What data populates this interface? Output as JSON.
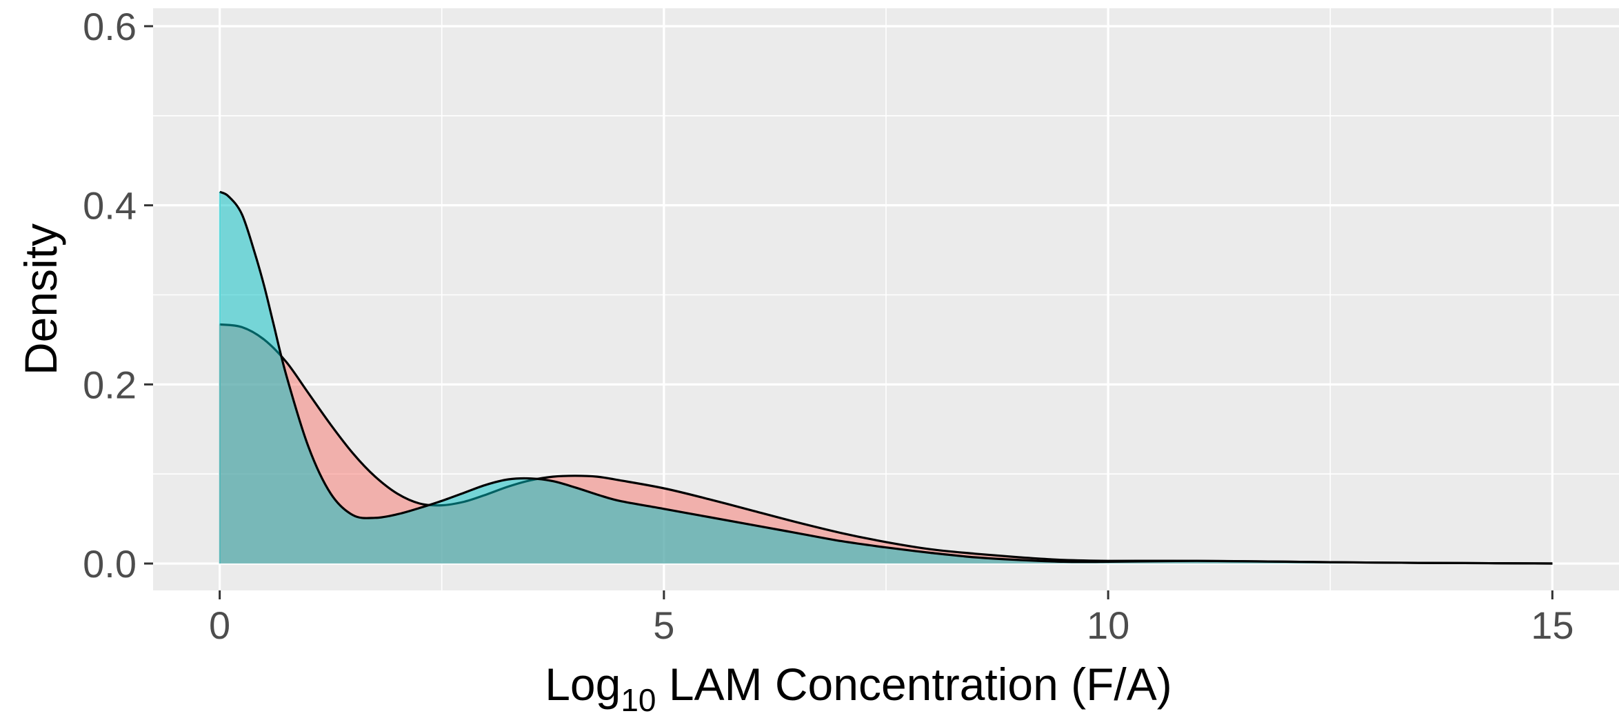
{
  "chart_data": {
    "type": "area",
    "xlabel": {
      "prefix": "Log",
      "subscript": "10",
      "suffix": " LAM Concentration (F/A)"
    },
    "ylabel": "Density",
    "xlim": [
      -0.75,
      15.75
    ],
    "ylim": [
      -0.03,
      0.62
    ],
    "x_ticks": [
      0,
      5,
      10,
      15
    ],
    "x_tick_labels": [
      "0",
      "5",
      "10",
      "15"
    ],
    "y_ticks": [
      0.0,
      0.2,
      0.4,
      0.6
    ],
    "y_tick_labels": [
      "0.0",
      "0.2",
      "0.4",
      "0.6"
    ],
    "grid": true,
    "legend": "none",
    "series": [
      {
        "fill": "#F8766D",
        "points": [
          [
            0,
            0.267
          ],
          [
            0.25,
            0.264
          ],
          [
            0.5,
            0.25
          ],
          [
            0.75,
            0.225
          ],
          [
            1,
            0.19
          ],
          [
            1.25,
            0.155
          ],
          [
            1.5,
            0.123
          ],
          [
            1.75,
            0.097
          ],
          [
            2,
            0.078
          ],
          [
            2.25,
            0.067
          ],
          [
            2.5,
            0.065
          ],
          [
            2.75,
            0.069
          ],
          [
            3,
            0.077
          ],
          [
            3.25,
            0.086
          ],
          [
            3.5,
            0.093
          ],
          [
            3.75,
            0.097
          ],
          [
            4,
            0.098
          ],
          [
            4.25,
            0.097
          ],
          [
            4.5,
            0.093
          ],
          [
            5,
            0.084
          ],
          [
            5.5,
            0.072
          ],
          [
            6,
            0.059
          ],
          [
            6.5,
            0.046
          ],
          [
            7,
            0.034
          ],
          [
            7.5,
            0.024
          ],
          [
            8,
            0.016
          ],
          [
            8.5,
            0.011
          ],
          [
            9,
            0.007
          ],
          [
            9.5,
            0.004
          ],
          [
            10,
            0.003
          ],
          [
            11,
            0.003
          ],
          [
            12,
            0.002
          ],
          [
            13,
            0.001
          ],
          [
            14,
            0.0005
          ],
          [
            15,
            0.0
          ]
        ]
      },
      {
        "fill": "#00BFC4",
        "points": [
          [
            0,
            0.415
          ],
          [
            0.1,
            0.41
          ],
          [
            0.25,
            0.39
          ],
          [
            0.4,
            0.345
          ],
          [
            0.5,
            0.31
          ],
          [
            0.6,
            0.27
          ],
          [
            0.75,
            0.21
          ],
          [
            1,
            0.13
          ],
          [
            1.25,
            0.078
          ],
          [
            1.5,
            0.054
          ],
          [
            1.75,
            0.051
          ],
          [
            2,
            0.055
          ],
          [
            2.25,
            0.062
          ],
          [
            2.5,
            0.07
          ],
          [
            2.75,
            0.079
          ],
          [
            3,
            0.088
          ],
          [
            3.25,
            0.094
          ],
          [
            3.5,
            0.095
          ],
          [
            3.75,
            0.092
          ],
          [
            4,
            0.085
          ],
          [
            4.25,
            0.077
          ],
          [
            4.5,
            0.07
          ],
          [
            5,
            0.061
          ],
          [
            5.5,
            0.052
          ],
          [
            6,
            0.043
          ],
          [
            6.5,
            0.034
          ],
          [
            7,
            0.025
          ],
          [
            7.5,
            0.018
          ],
          [
            8,
            0.012
          ],
          [
            8.5,
            0.007
          ],
          [
            9,
            0.004
          ],
          [
            9.5,
            0.002
          ],
          [
            10,
            0.002
          ],
          [
            11,
            0.003
          ],
          [
            12,
            0.002
          ],
          [
            13,
            0.001
          ],
          [
            14,
            0.0005
          ],
          [
            15,
            0.0
          ]
        ]
      }
    ]
  }
}
